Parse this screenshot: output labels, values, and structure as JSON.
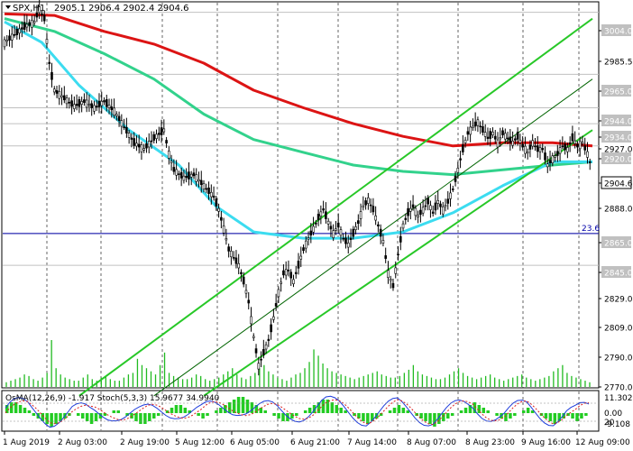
{
  "chart_data": {
    "type": "candlestick",
    "symbol_header": {
      "symbol": "SPX,H1",
      "ohlc": "2905.1 2906.4 2902.4 2904.6"
    },
    "price_range": [
      2768,
      3010
    ],
    "price_ticks": [
      "3004.0",
      "2985.5",
      "2965.0",
      "2944.0",
      "2934.0",
      "2927.0",
      "2920.0",
      "2904.6",
      "2888.0",
      "2865.0",
      "2845.0",
      "2829.0",
      "2809.0",
      "2790.0",
      "2770.0"
    ],
    "highlighted_levels": [
      {
        "label": "3004.0",
        "value": 3004.0,
        "bg": "#c0c0c0",
        "fg": "#ffffff"
      },
      {
        "label": "2965.0",
        "value": 2965.0,
        "bg": "#c0c0c0",
        "fg": "#ffffff"
      },
      {
        "label": "2944.0",
        "value": 2944.0,
        "bg": "#c0c0c0",
        "fg": "#ffffff"
      },
      {
        "label": "2934.0",
        "value": 2934.0,
        "bg": "#c0c0c0",
        "fg": "#ffffff"
      },
      {
        "label": "2920.0",
        "value": 2920.0,
        "bg": "#c0c0c0",
        "fg": "#ffffff"
      },
      {
        "label": "2904.6",
        "value": 2904.6,
        "bg": "#ffffff",
        "fg": "#000000",
        "border": true
      },
      {
        "label": "2865.0",
        "value": 2865.0,
        "bg": "#c0c0c0",
        "fg": "#ffffff"
      },
      {
        "label": "2845.0",
        "value": 2845.0,
        "bg": "#c0c0c0",
        "fg": "#ffffff"
      }
    ],
    "horizontal_line": {
      "value": 2865.0,
      "label": "23.6",
      "color": "#0000aa"
    },
    "time_labels": [
      "1 Aug 2019",
      "2 Aug 03:00",
      "2 Aug 19:00",
      "5 Aug 12:00",
      "6 Aug 05:00",
      "6 Aug 21:00",
      "7 Aug 14:00",
      "8 Aug 07:00",
      "8 Aug 23:00",
      "9 Aug 16:00",
      "12 Aug 09:00"
    ],
    "price_path": [
      [
        0,
        2985
      ],
      [
        4,
        2990
      ],
      [
        8,
        2995
      ],
      [
        12,
        2998
      ],
      [
        14,
        3006
      ],
      [
        16,
        3000
      ],
      [
        18,
        2972
      ],
      [
        20,
        2955
      ],
      [
        24,
        2950
      ],
      [
        28,
        2945
      ],
      [
        32,
        2948
      ],
      [
        36,
        2944
      ],
      [
        40,
        2948
      ],
      [
        44,
        2942
      ],
      [
        48,
        2932
      ],
      [
        52,
        2922
      ],
      [
        56,
        2918
      ],
      [
        60,
        2925
      ],
      [
        64,
        2930
      ],
      [
        66,
        2915
      ],
      [
        68,
        2905
      ],
      [
        72,
        2900
      ],
      [
        76,
        2902
      ],
      [
        80,
        2895
      ],
      [
        84,
        2888
      ],
      [
        86,
        2880
      ],
      [
        88,
        2868
      ],
      [
        90,
        2855
      ],
      [
        94,
        2845
      ],
      [
        96,
        2835
      ],
      [
        98,
        2822
      ],
      [
        100,
        2800
      ],
      [
        102,
        2782
      ],
      [
        104,
        2790
      ],
      [
        106,
        2798
      ],
      [
        108,
        2812
      ],
      [
        110,
        2828
      ],
      [
        112,
        2840
      ],
      [
        114,
        2842
      ],
      [
        116,
        2835
      ],
      [
        118,
        2845
      ],
      [
        120,
        2855
      ],
      [
        122,
        2862
      ],
      [
        124,
        2868
      ],
      [
        126,
        2875
      ],
      [
        128,
        2880
      ],
      [
        130,
        2872
      ],
      [
        132,
        2865
      ],
      [
        134,
        2870
      ],
      [
        136,
        2862
      ],
      [
        138,
        2858
      ],
      [
        140,
        2865
      ],
      [
        142,
        2872
      ],
      [
        144,
        2882
      ],
      [
        146,
        2886
      ],
      [
        148,
        2880
      ],
      [
        150,
        2870
      ],
      [
        152,
        2860
      ],
      [
        154,
        2840
      ],
      [
        156,
        2832
      ],
      [
        158,
        2852
      ],
      [
        160,
        2870
      ],
      [
        162,
        2878
      ],
      [
        164,
        2882
      ],
      [
        166,
        2876
      ],
      [
        168,
        2880
      ],
      [
        170,
        2885
      ],
      [
        172,
        2878
      ],
      [
        174,
        2885
      ],
      [
        176,
        2880
      ],
      [
        178,
        2885
      ],
      [
        180,
        2893
      ],
      [
        182,
        2905
      ],
      [
        184,
        2918
      ],
      [
        186,
        2928
      ],
      [
        188,
        2932
      ],
      [
        190,
        2935
      ],
      [
        192,
        2930
      ],
      [
        194,
        2925
      ],
      [
        196,
        2928
      ],
      [
        198,
        2922
      ],
      [
        200,
        2928
      ],
      [
        202,
        2925
      ],
      [
        204,
        2922
      ],
      [
        206,
        2926
      ],
      [
        208,
        2920
      ],
      [
        210,
        2916
      ],
      [
        212,
        2922
      ],
      [
        214,
        2918
      ],
      [
        216,
        2918
      ],
      [
        218,
        2908
      ],
      [
        220,
        2912
      ],
      [
        222,
        2915
      ],
      [
        224,
        2920
      ],
      [
        226,
        2918
      ],
      [
        228,
        2925
      ],
      [
        230,
        2920
      ],
      [
        232,
        2922
      ],
      [
        234,
        2915
      ],
      [
        236,
        2905
      ]
    ],
    "moving_averages": [
      {
        "color": "#dc1414",
        "points": [
          [
            0,
            3003
          ],
          [
            20,
            3002
          ],
          [
            40,
            2992
          ],
          [
            60,
            2984
          ],
          [
            80,
            2972
          ],
          [
            100,
            2955
          ],
          [
            120,
            2944
          ],
          [
            140,
            2934
          ],
          [
            160,
            2926
          ],
          [
            180,
            2920
          ],
          [
            200,
            2922
          ],
          [
            220,
            2922
          ],
          [
            236,
            2920
          ]
        ]
      },
      {
        "color": "#32d28c",
        "points": [
          [
            0,
            3000
          ],
          [
            20,
            2992
          ],
          [
            40,
            2978
          ],
          [
            60,
            2962
          ],
          [
            80,
            2940
          ],
          [
            100,
            2924
          ],
          [
            120,
            2916
          ],
          [
            140,
            2908
          ],
          [
            160,
            2904
          ],
          [
            180,
            2902
          ],
          [
            200,
            2905
          ],
          [
            220,
            2908
          ],
          [
            236,
            2910
          ]
        ]
      },
      {
        "color": "#3cdcf0",
        "points": [
          [
            0,
            2998
          ],
          [
            15,
            2985
          ],
          [
            30,
            2958
          ],
          [
            50,
            2930
          ],
          [
            70,
            2908
          ],
          [
            85,
            2882
          ],
          [
            100,
            2866
          ],
          [
            120,
            2862
          ],
          [
            140,
            2862
          ],
          [
            160,
            2866
          ],
          [
            180,
            2878
          ],
          [
            200,
            2895
          ],
          [
            220,
            2910
          ],
          [
            236,
            2910
          ]
        ]
      }
    ],
    "channel_lines": [
      {
        "color": "#28c828",
        "width": 2,
        "from": [
          30,
          2763
        ],
        "to": [
          236,
          3000
        ]
      },
      {
        "color": "#28c828",
        "width": 2,
        "from": [
          80,
          2763
        ],
        "to": [
          236,
          2930
        ]
      },
      {
        "color": "#006400",
        "width": 1,
        "from": [
          60,
          2763
        ],
        "to": [
          236,
          2962
        ]
      }
    ],
    "volume": [
      3,
      4,
      5,
      6,
      8,
      7,
      5,
      4,
      6,
      9,
      30,
      12,
      8,
      6,
      5,
      4,
      4,
      6,
      8,
      5,
      4,
      6,
      7,
      5,
      4,
      4,
      6,
      8,
      9,
      18,
      14,
      12,
      10,
      8,
      14,
      22,
      9,
      7,
      6,
      5,
      5,
      6,
      8,
      7,
      5,
      4,
      5,
      6,
      8,
      10,
      12,
      8,
      6,
      5,
      7,
      9,
      12,
      14,
      10,
      8,
      6,
      5,
      4,
      6,
      8,
      9,
      12,
      16,
      24,
      20,
      15,
      12,
      10,
      9,
      8,
      7,
      6,
      5,
      6,
      7,
      8,
      9,
      10,
      8,
      7,
      6,
      6,
      7,
      9,
      11,
      14,
      10,
      8,
      7,
      6,
      5,
      5,
      6,
      8,
      10,
      12,
      9,
      7,
      6,
      5,
      6,
      7,
      8,
      6,
      5,
      4,
      5,
      6,
      7,
      8,
      6,
      5,
      4,
      5,
      6,
      7,
      10,
      12,
      14,
      9,
      7,
      6,
      5,
      4,
      3
    ],
    "oscillator": {
      "label": "OsMA(12,26,9) -1.917  Stoch(5,3,3) 15.9677 34.9940",
      "ticks": [
        "11.302",
        "0.00",
        "20",
        "-9.108"
      ],
      "histogram": [
        3,
        4,
        4,
        3,
        2,
        1,
        -1,
        -2,
        -3,
        -4,
        -5,
        -4,
        -3,
        -2,
        -1,
        0,
        -1,
        -2,
        -3,
        -4,
        -3,
        -2,
        -1,
        0,
        1,
        1,
        0,
        -1,
        -2,
        -3,
        -4,
        -4,
        -3,
        -2,
        -1,
        0,
        1,
        2,
        3,
        3,
        2,
        1,
        0,
        -1,
        -2,
        -1,
        0,
        1,
        2,
        3,
        4,
        5,
        6,
        6,
        5,
        4,
        3,
        2,
        1,
        0,
        -1,
        -2,
        -3,
        -3,
        -2,
        -1,
        0,
        1,
        2,
        3,
        4,
        5,
        5,
        4,
        3,
        2,
        1,
        0,
        -1,
        -2,
        -3,
        -4,
        -3,
        -2,
        -1,
        0,
        1,
        2,
        3,
        2,
        1,
        0,
        -1,
        -2,
        -3,
        -4,
        -5,
        -4,
        -3,
        -2,
        -1,
        0,
        1,
        2,
        3,
        4,
        3,
        2,
        1,
        0,
        -1,
        -2,
        -3,
        -2,
        -1,
        0,
        1,
        2,
        1,
        0,
        -1,
        -2,
        -3,
        -4,
        -3,
        -2,
        -1,
        -2,
        -3,
        -2,
        -1,
        0
      ]
    }
  }
}
